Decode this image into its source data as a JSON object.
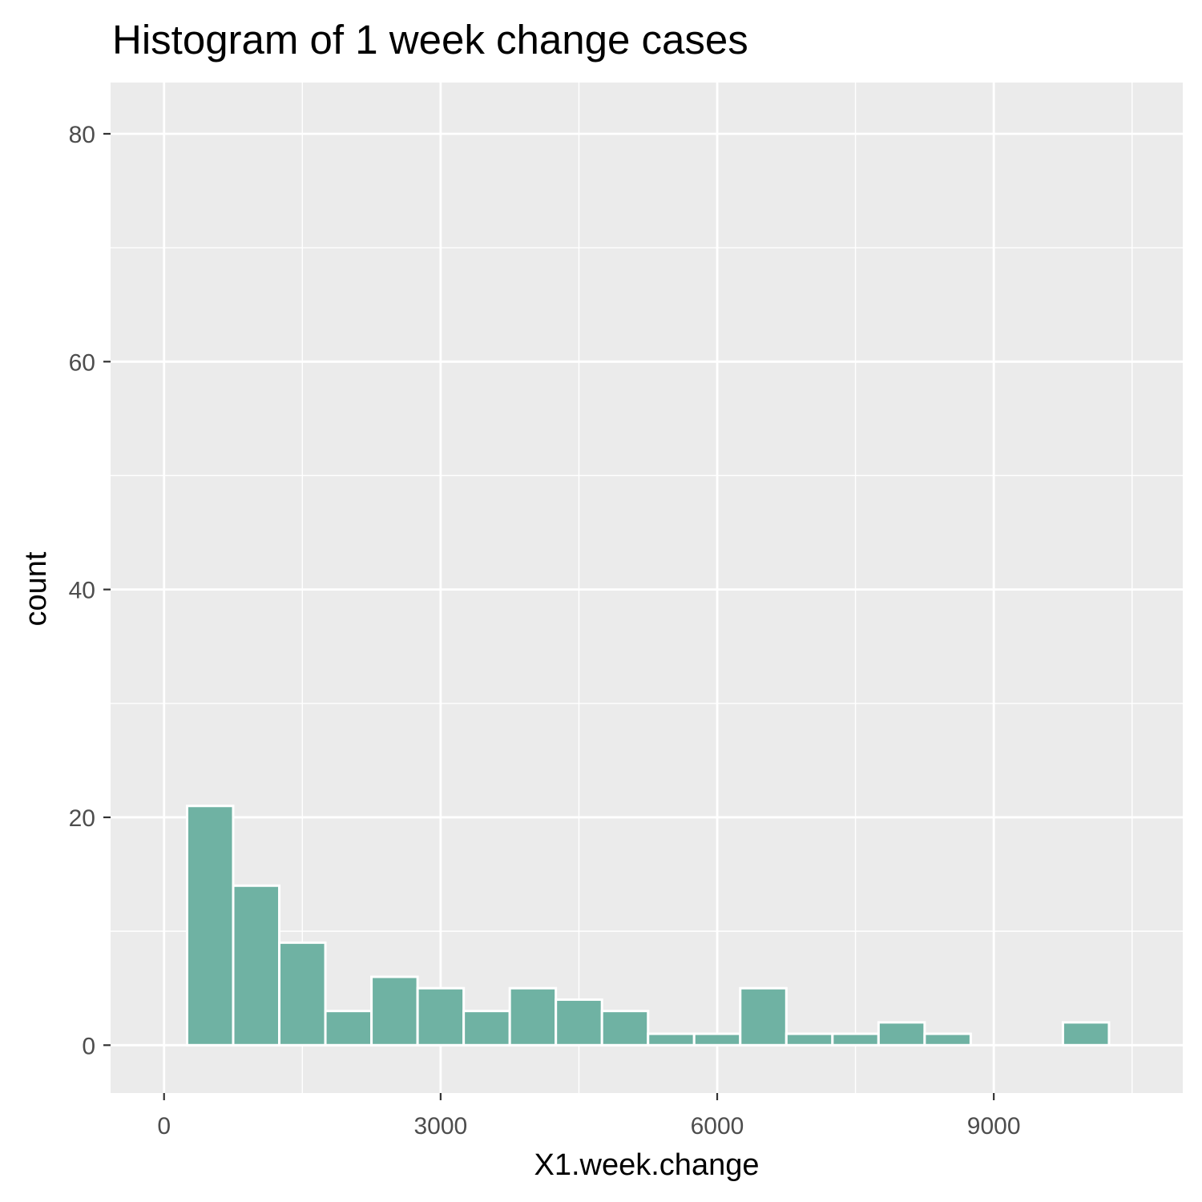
{
  "chart_data": {
    "type": "bar",
    "title": "Histogram of 1 week change cases",
    "xlabel": "X1.week.change",
    "ylabel": "count",
    "xlim": [
      -580,
      11050
    ],
    "ylim": [
      -4.2,
      84.5
    ],
    "x_ticks": [
      0,
      3000,
      6000,
      9000
    ],
    "x_tick_labels": [
      "0",
      "3000",
      "6000",
      "9000"
    ],
    "y_ticks": [
      0,
      20,
      40,
      60,
      80
    ],
    "y_tick_labels": [
      "0",
      "20",
      "40",
      "60",
      "80"
    ],
    "grid": true,
    "bin_width": 500,
    "bins_start": 250,
    "counts": [
      21,
      14,
      9,
      3,
      6,
      5,
      3,
      5,
      4,
      3,
      1,
      1,
      5,
      1,
      1,
      2,
      1,
      0,
      0,
      2,
      0
    ],
    "fill_color": "#6fb2a3",
    "panel_color": "#ebebeb",
    "grid_color": "#ffffff"
  }
}
